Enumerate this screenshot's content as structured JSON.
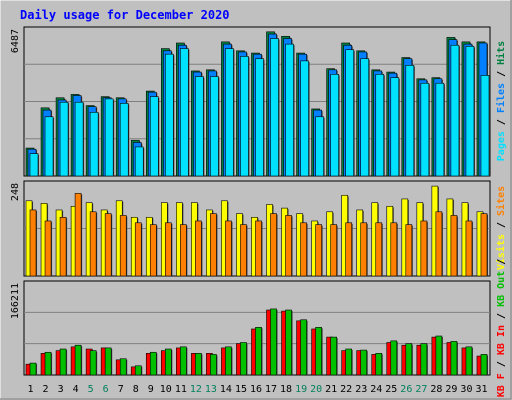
{
  "title": "Daily usage for December 2020",
  "colors": {
    "page_bg": "#C0C0C0",
    "plot_bg": "#C0C0C0",
    "hits": "#008040",
    "files": "#0080FF",
    "pages": "#00E0FF",
    "visits": "#FFFF00",
    "sites": "#FF8000",
    "kbin": "#FF0000",
    "kbout": "#00C000",
    "title": "#0000FF",
    "weekend_day": "#00805C",
    "weekday": "#000000"
  },
  "chart_data": [
    {
      "type": "bar",
      "panel": "hits-files-pages",
      "y_max_label": "6487",
      "ylim": [
        0,
        6487
      ],
      "legend_right": [
        "Pages",
        "/",
        "Files",
        "/",
        "Hits"
      ],
      "categories": [
        "1",
        "2",
        "3",
        "4",
        "5",
        "6",
        "7",
        "8",
        "9",
        "10",
        "11",
        "12",
        "13",
        "14",
        "15",
        "16",
        "17",
        "18",
        "19",
        "20",
        "21",
        "22",
        "23",
        "24",
        "25",
        "26",
        "27",
        "28",
        "29",
        "30",
        "31"
      ],
      "series": [
        {
          "name": "Hits",
          "values": [
            1250,
            3050,
            3500,
            3650,
            3150,
            3550,
            3500,
            1600,
            3800,
            5700,
            5950,
            4700,
            4750,
            6000,
            5600,
            5500,
            6450,
            6250,
            5500,
            3000,
            4800,
            5950,
            5600,
            4750,
            4650,
            5300,
            4350,
            4400,
            6200,
            6000,
            6000
          ]
        },
        {
          "name": "Files",
          "values": [
            1200,
            2950,
            3400,
            3600,
            3100,
            3500,
            3450,
            1500,
            3750,
            5600,
            5850,
            4650,
            4700,
            5900,
            5550,
            5450,
            6350,
            6150,
            5450,
            2950,
            4750,
            5850,
            5550,
            4700,
            4600,
            5250,
            4300,
            4350,
            6100,
            5900,
            5950
          ]
        },
        {
          "name": "Pages",
          "values": [
            1000,
            2650,
            3300,
            3300,
            2850,
            3450,
            3250,
            1300,
            3550,
            5450,
            5700,
            4450,
            4450,
            5700,
            5350,
            5250,
            6150,
            5900,
            5150,
            2650,
            4550,
            5650,
            5250,
            4550,
            4400,
            4950,
            4150,
            4150,
            5850,
            5800,
            4500
          ]
        }
      ]
    },
    {
      "type": "bar",
      "panel": "visits-sites",
      "y_max_label": "248",
      "ylim": [
        0,
        248
      ],
      "legend_right": [
        "Visits",
        "/",
        "Sites"
      ],
      "categories": [
        "1",
        "2",
        "3",
        "4",
        "5",
        "6",
        "7",
        "8",
        "9",
        "10",
        "11",
        "12",
        "13",
        "14",
        "15",
        "16",
        "17",
        "18",
        "19",
        "20",
        "21",
        "22",
        "23",
        "24",
        "25",
        "26",
        "27",
        "28",
        "29",
        "30",
        "31"
      ],
      "series": [
        {
          "name": "Visits",
          "values": [
            205,
            198,
            180,
            190,
            200,
            180,
            205,
            160,
            160,
            200,
            200,
            200,
            180,
            205,
            170,
            160,
            195,
            185,
            170,
            150,
            175,
            220,
            180,
            200,
            190,
            210,
            200,
            245,
            210,
            200,
            175
          ]
        },
        {
          "name": "Sites",
          "values": [
            180,
            150,
            160,
            225,
            175,
            170,
            165,
            145,
            140,
            145,
            140,
            150,
            170,
            150,
            140,
            150,
            170,
            165,
            145,
            140,
            140,
            145,
            145,
            145,
            145,
            140,
            150,
            175,
            165,
            150,
            170
          ]
        }
      ]
    },
    {
      "type": "bar",
      "panel": "kbin-kbout",
      "y_max_label": "166211",
      "ylim": [
        0,
        166211
      ],
      "legend_right": [
        "KB F",
        "/",
        "KB In",
        "/",
        "KB Out",
        "/",
        "Sites",
        "/",
        "Visits"
      ],
      "categories": [
        "1",
        "2",
        "3",
        "4",
        "5",
        "6",
        "7",
        "8",
        "9",
        "10",
        "11",
        "12",
        "13",
        "14",
        "15",
        "16",
        "17",
        "18",
        "19",
        "20",
        "21",
        "22",
        "23",
        "24",
        "25",
        "26",
        "27",
        "28",
        "29",
        "30",
        "31"
      ],
      "series": [
        {
          "name": "KB In",
          "values": [
            20000,
            40000,
            45000,
            52000,
            48000,
            50000,
            28000,
            15000,
            40000,
            45000,
            50000,
            40000,
            40000,
            50000,
            58000,
            85000,
            120000,
            118000,
            100000,
            85000,
            70000,
            45000,
            45000,
            38000,
            60000,
            55000,
            55000,
            70000,
            60000,
            50000,
            35000
          ]
        },
        {
          "name": "KB Out",
          "values": [
            22000,
            42000,
            48000,
            55000,
            45000,
            50000,
            30000,
            17000,
            42000,
            48000,
            52000,
            40000,
            38000,
            52000,
            60000,
            88000,
            122000,
            120000,
            102000,
            88000,
            70000,
            48000,
            46000,
            40000,
            63000,
            58000,
            58000,
            72000,
            62000,
            52000,
            38000
          ]
        }
      ]
    }
  ],
  "x_labels": {
    "days": [
      "1",
      "2",
      "3",
      "4",
      "5",
      "6",
      "7",
      "8",
      "9",
      "10",
      "11",
      "12",
      "13",
      "14",
      "15",
      "16",
      "17",
      "18",
      "19",
      "20",
      "21",
      "22",
      "23",
      "24",
      "25",
      "26",
      "27",
      "28",
      "29",
      "30",
      "31"
    ],
    "weekend_days": [
      "5",
      "6",
      "12",
      "13",
      "19",
      "20",
      "26",
      "27"
    ]
  },
  "legend": {
    "panel1": [
      "Pages",
      " / ",
      "Files",
      " / ",
      "Hits"
    ],
    "panel2": [
      "Visits",
      " / ",
      "Sites"
    ],
    "panel3": [
      "KB F",
      " / ",
      "KB In",
      " / ",
      "KB Out",
      " / "
    ]
  }
}
